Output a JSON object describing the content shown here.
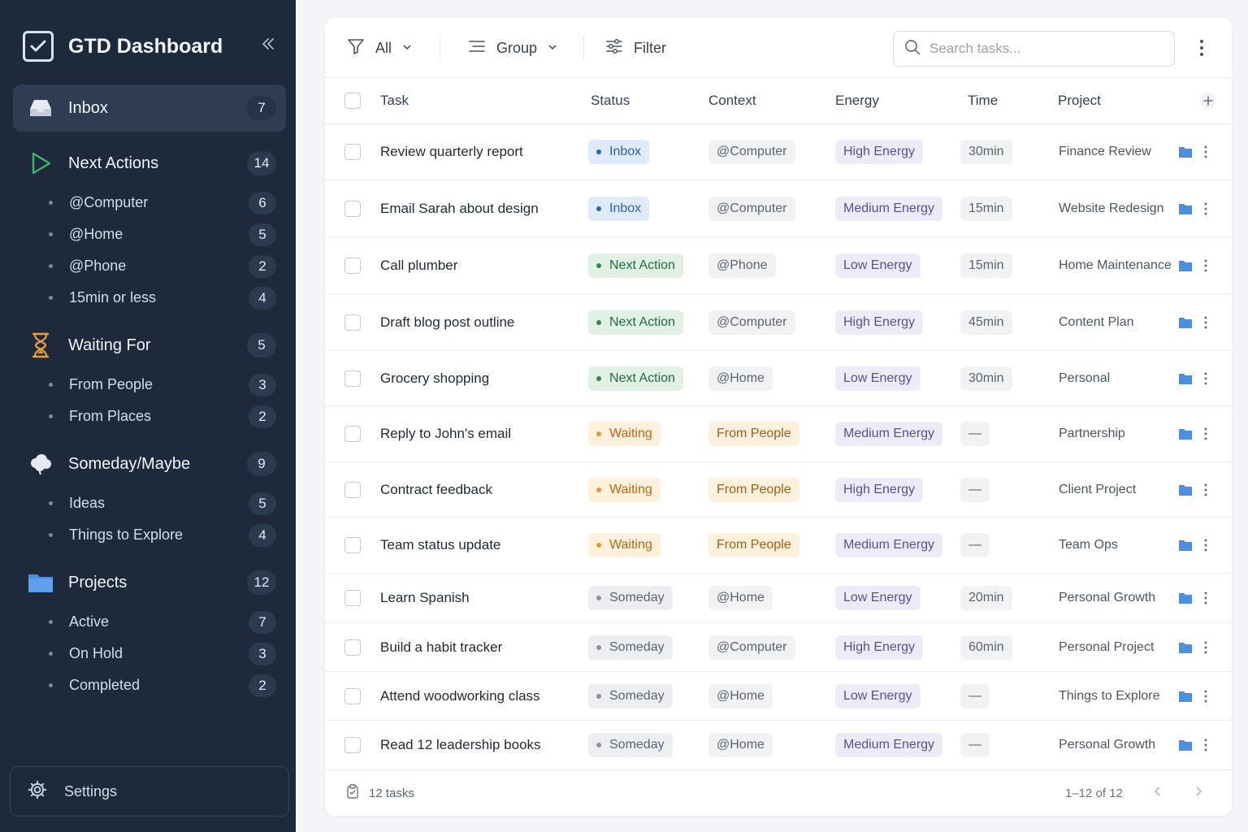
{
  "app": {
    "title": "GTD Dashboard"
  },
  "sidebar": {
    "sections": [
      {
        "label": "Inbox",
        "count": "7",
        "icon": "inbox-icon",
        "active": true,
        "children": []
      },
      {
        "label": "Next Actions",
        "count": "14",
        "icon": "play-icon",
        "children": [
          {
            "label": "@Computer",
            "count": "6"
          },
          {
            "label": "@Home",
            "count": "5"
          },
          {
            "label": "@Phone",
            "count": "2"
          },
          {
            "label": "15min or less",
            "count": "4"
          }
        ]
      },
      {
        "label": "Waiting For",
        "count": "5",
        "icon": "hourglass-icon",
        "children": [
          {
            "label": "From People",
            "count": "3"
          },
          {
            "label": "From Places",
            "count": "2"
          }
        ]
      },
      {
        "label": "Someday/Maybe",
        "count": "9",
        "icon": "cloud-icon",
        "children": [
          {
            "label": "Ideas",
            "count": "5"
          },
          {
            "label": "Things to Explore",
            "count": "4"
          }
        ]
      },
      {
        "label": "Projects",
        "count": "12",
        "icon": "folder-icon",
        "children": [
          {
            "label": "Active",
            "count": "7"
          },
          {
            "label": "On Hold",
            "count": "3"
          },
          {
            "label": "Completed",
            "count": "2"
          }
        ]
      }
    ],
    "settings_label": "Settings"
  },
  "toolbar": {
    "filter_all_label": "All",
    "group_label": "Group",
    "filter_label": "Filter",
    "search_placeholder": "Search tasks..."
  },
  "table": {
    "columns": {
      "task": "Task",
      "status": "Status",
      "context": "Context",
      "energy": "Energy",
      "time": "Time",
      "project": "Project"
    },
    "rows": [
      {
        "task": "Review quarterly report",
        "status": "Inbox",
        "status_kind": "inbox",
        "context": "@Computer",
        "context_kind": "normal",
        "energy": "High Energy",
        "time": "30min",
        "project": "Finance Review"
      },
      {
        "task": "Email Sarah about design",
        "status": "Inbox",
        "status_kind": "inbox",
        "context": "@Computer",
        "context_kind": "normal",
        "energy": "Medium Energy",
        "time": "15min",
        "project": "Website Redesign"
      },
      {
        "task": "Call plumber",
        "status": "Next Action",
        "status_kind": "next",
        "context": "@Phone",
        "context_kind": "normal",
        "energy": "Low Energy",
        "time": "15min",
        "project": "Home Maintenance"
      },
      {
        "task": "Draft blog post outline",
        "status": "Next Action",
        "status_kind": "next",
        "context": "@Computer",
        "context_kind": "normal",
        "energy": "High Energy",
        "time": "45min",
        "project": "Content Plan"
      },
      {
        "task": "Grocery shopping",
        "status": "Next Action",
        "status_kind": "next",
        "context": "@Home",
        "context_kind": "normal",
        "energy": "Low Energy",
        "time": "30min",
        "project": "Personal"
      },
      {
        "task": "Reply to John's email",
        "status": "Waiting",
        "status_kind": "wait",
        "context": "From People",
        "context_kind": "people",
        "energy": "Medium Energy",
        "time": "—",
        "project": "Partnership"
      },
      {
        "task": "Contract feedback",
        "status": "Waiting",
        "status_kind": "wait",
        "context": "From People",
        "context_kind": "people",
        "energy": "High Energy",
        "time": "—",
        "project": "Client Project"
      },
      {
        "task": "Team status update",
        "status": "Waiting",
        "status_kind": "wait",
        "context": "From People",
        "context_kind": "people",
        "energy": "Medium Energy",
        "time": "—",
        "project": "Team Ops"
      },
      {
        "task": "Learn Spanish",
        "status": "Someday",
        "status_kind": "some",
        "context": "@Home",
        "context_kind": "normal",
        "energy": "Low Energy",
        "time": "20min",
        "project": "Personal Growth"
      },
      {
        "task": "Build a habit tracker",
        "status": "Someday",
        "status_kind": "some",
        "context": "@Computer",
        "context_kind": "normal",
        "energy": "High Energy",
        "time": "60min",
        "project": "Personal Project"
      },
      {
        "task": "Attend woodworking class",
        "status": "Someday",
        "status_kind": "some",
        "context": "@Home",
        "context_kind": "normal",
        "energy": "Low Energy",
        "time": "—",
        "project": "Things to Explore"
      },
      {
        "task": "Read 12 leadership books",
        "status": "Someday",
        "status_kind": "some",
        "context": "@Home",
        "context_kind": "normal",
        "energy": "Medium Energy",
        "time": "—",
        "project": "Personal Growth"
      }
    ]
  },
  "footer": {
    "task_count": "12 tasks",
    "pagination": "1–12 of 12"
  },
  "colors": {
    "sidebar_bg": "#1e2a3c",
    "accent_green": "#2a8a4c",
    "accent_amber": "#e39a2d",
    "folder_blue": "#4a8fe0"
  }
}
